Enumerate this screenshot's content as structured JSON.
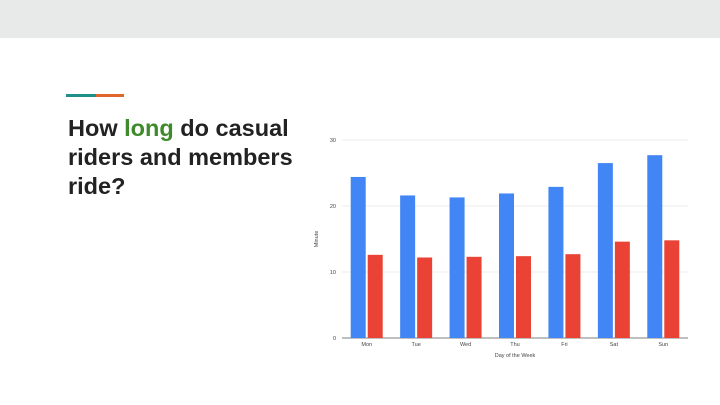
{
  "slide": {
    "title_part1": "How ",
    "title_highlight": "long",
    "title_part2": " do casual riders and members ride?"
  },
  "colors": {
    "accent_teal": "#1f8f8a",
    "accent_orange": "#e0662b",
    "highlight_green": "#3f8a2b",
    "casual_blue": "#4285f4",
    "member_red": "#ea4335"
  },
  "chart_data": {
    "type": "bar",
    "categories": [
      "Mon",
      "Tue",
      "Wed",
      "Thu",
      "Fri",
      "Sat",
      "Sun"
    ],
    "series": [
      {
        "values": [
          24.4,
          21.6,
          21.3,
          21.9,
          22.9,
          26.5,
          27.7
        ],
        "color": "#4285f4"
      },
      {
        "values": [
          12.6,
          12.2,
          12.3,
          12.4,
          12.7,
          14.6,
          14.8
        ],
        "color": "#ea4335"
      }
    ],
    "xlabel": "Day of the Week",
    "ylabel": "Minute",
    "ylim": [
      0,
      30
    ],
    "yticks": [
      0,
      10,
      20,
      30
    ],
    "grid": true
  }
}
